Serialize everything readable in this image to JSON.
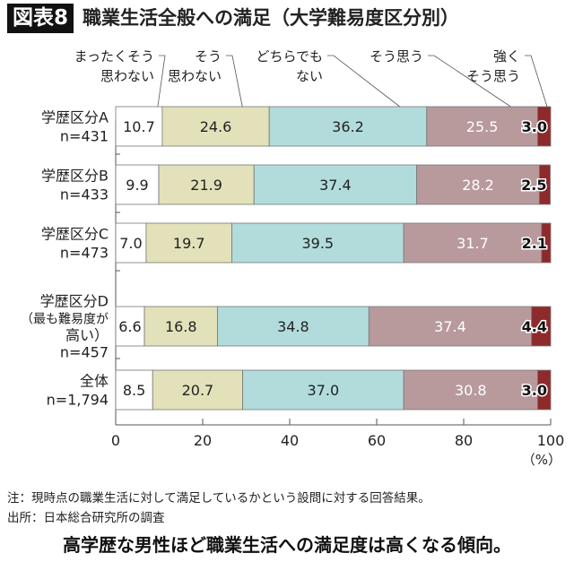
{
  "figure_label": "図表8",
  "title": "職業生活全般への満足（大学難易度区分別）",
  "note": "注：現時点の職業生活に対して満足しているかという設問に対する回答結果。",
  "source": "出所：日本総合研究所の調査",
  "headline": "高学歴な男性ほど職業生活への満足度は高くなる傾向。",
  "colors": {
    "s1": "#ffffff",
    "s2": "#e3e1b9",
    "s3": "#b2dcdc",
    "s4": "#b89a9c",
    "s5": "#8e2a2c",
    "title_bg": "#111111"
  },
  "chart_data": {
    "type": "bar",
    "orientation": "horizontal-stacked",
    "categories": [
      [
        "学歴区分A",
        "n=431"
      ],
      [
        "学歴区分B",
        "n=433"
      ],
      [
        "学歴区分C",
        "n=473"
      ],
      [
        "学歴区分D",
        "（最も難易度が",
        "高い）",
        "n=457"
      ],
      [
        "全体",
        "n=1,794"
      ]
    ],
    "series": [
      {
        "name": [
          "まったくそう",
          "思わない"
        ],
        "values": [
          10.7,
          9.9,
          7.0,
          6.6,
          8.5
        ],
        "labels": [
          "10.7",
          "9.9",
          "7.0",
          "6.6",
          "8.5"
        ]
      },
      {
        "name": [
          "そう",
          "思わない"
        ],
        "values": [
          24.6,
          21.9,
          19.7,
          16.8,
          20.7
        ],
        "labels": [
          "24.6",
          "21.9",
          "19.7",
          "16.8",
          "20.7"
        ]
      },
      {
        "name": [
          "どちらでも",
          "ない"
        ],
        "values": [
          36.2,
          37.4,
          39.5,
          34.8,
          37.0
        ],
        "labels": [
          "36.2",
          "37.4",
          "39.5",
          "34.8",
          "37.0"
        ]
      },
      {
        "name": [
          "そう思う"
        ],
        "values": [
          25.5,
          28.2,
          31.7,
          37.4,
          30.8
        ],
        "labels": [
          "25.5",
          "28.2",
          "31.7",
          "37.4",
          "30.8"
        ]
      },
      {
        "name": [
          "強く",
          "そう思う"
        ],
        "values": [
          3.0,
          2.5,
          2.1,
          4.4,
          3.0
        ],
        "labels": [
          "3.0",
          "2.5",
          "2.1",
          "4.4",
          "3.0"
        ]
      }
    ],
    "xlim": [
      0,
      100
    ],
    "xticks": [
      "0",
      "20",
      "40",
      "60",
      "80",
      "100"
    ],
    "xunit": "（%）",
    "grid": false,
    "legend_placement": "top, leader lines"
  }
}
